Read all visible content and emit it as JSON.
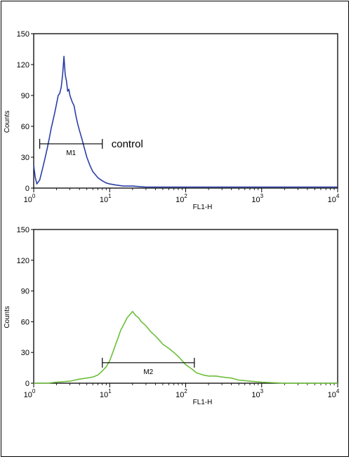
{
  "chart_data": [
    {
      "type": "line",
      "title": "",
      "xlabel": "FL1-H",
      "ylabel": "Counts",
      "x_scale": "log",
      "xlim": [
        1,
        10000
      ],
      "ylim": [
        0,
        150
      ],
      "y_ticks": [
        0,
        30,
        60,
        90,
        120,
        150
      ],
      "x_ticks": [
        {
          "base": "10",
          "exp": "0"
        },
        {
          "base": "10",
          "exp": "1"
        },
        {
          "base": "10",
          "exp": "2"
        },
        {
          "base": "10",
          "exp": "3"
        },
        {
          "base": "10",
          "exp": "4"
        }
      ],
      "grid": false,
      "line_color": "#2b3fa6",
      "series": [
        {
          "x": [
            1.0,
            1.05,
            1.1,
            1.2,
            1.3,
            1.4,
            1.5,
            1.6,
            1.7,
            1.8,
            1.9,
            2.0,
            2.1,
            2.2,
            2.3,
            2.4,
            2.5,
            2.6,
            2.7,
            2.8,
            2.9,
            3.0,
            3.2,
            3.4,
            3.6,
            3.8,
            4.0,
            4.3,
            4.6,
            5.0,
            5.5,
            6.0,
            7.0,
            8.0,
            9.0,
            10,
            12,
            15,
            20,
            30,
            50,
            100,
            300,
            1000,
            3000,
            10000
          ],
          "y": [
            22,
            10,
            4,
            8,
            18,
            28,
            38,
            48,
            58,
            66,
            74,
            82,
            90,
            92,
            98,
            110,
            128,
            110,
            104,
            94,
            96,
            90,
            84,
            80,
            70,
            62,
            56,
            48,
            40,
            30,
            22,
            16,
            10,
            7,
            5,
            4,
            3,
            2,
            2,
            1,
            1,
            1,
            1,
            1,
            1,
            1
          ]
        }
      ],
      "gate": {
        "label": "M1",
        "x_start": 1.2,
        "x_end": 8.0,
        "y": 43
      },
      "annotation": "control"
    },
    {
      "type": "line",
      "title": "",
      "xlabel": "FL1-H",
      "ylabel": "Counts",
      "x_scale": "log",
      "xlim": [
        1,
        10000
      ],
      "ylim": [
        0,
        150
      ],
      "y_ticks": [
        0,
        30,
        60,
        90,
        120,
        150
      ],
      "x_ticks": [
        {
          "base": "10",
          "exp": "0"
        },
        {
          "base": "10",
          "exp": "1"
        },
        {
          "base": "10",
          "exp": "2"
        },
        {
          "base": "10",
          "exp": "3"
        },
        {
          "base": "10",
          "exp": "4"
        }
      ],
      "grid": false,
      "line_color": "#6cbf3a",
      "series": [
        {
          "x": [
            1.0,
            1.5,
            2.0,
            3.0,
            4.0,
            5.0,
            6.0,
            7.0,
            8.0,
            9.0,
            10,
            11,
            12,
            13,
            14,
            15,
            16,
            17,
            18,
            19,
            20,
            22,
            24,
            26,
            28,
            30,
            35,
            40,
            45,
            50,
            60,
            70,
            80,
            90,
            100,
            120,
            140,
            170,
            200,
            250,
            300,
            400,
            500,
            700,
            1000,
            2000,
            10000
          ],
          "y": [
            0,
            0,
            1,
            2,
            4,
            5,
            6,
            8,
            12,
            16,
            22,
            30,
            38,
            45,
            52,
            56,
            60,
            64,
            66,
            68,
            70,
            66,
            64,
            60,
            58,
            56,
            50,
            46,
            42,
            38,
            34,
            30,
            26,
            22,
            18,
            14,
            10,
            8,
            7,
            7,
            6,
            5,
            3,
            2,
            1,
            0,
            0
          ]
        }
      ],
      "gate": {
        "label": "M2",
        "x_start": 8.0,
        "x_end": 130,
        "y": 20
      }
    }
  ]
}
